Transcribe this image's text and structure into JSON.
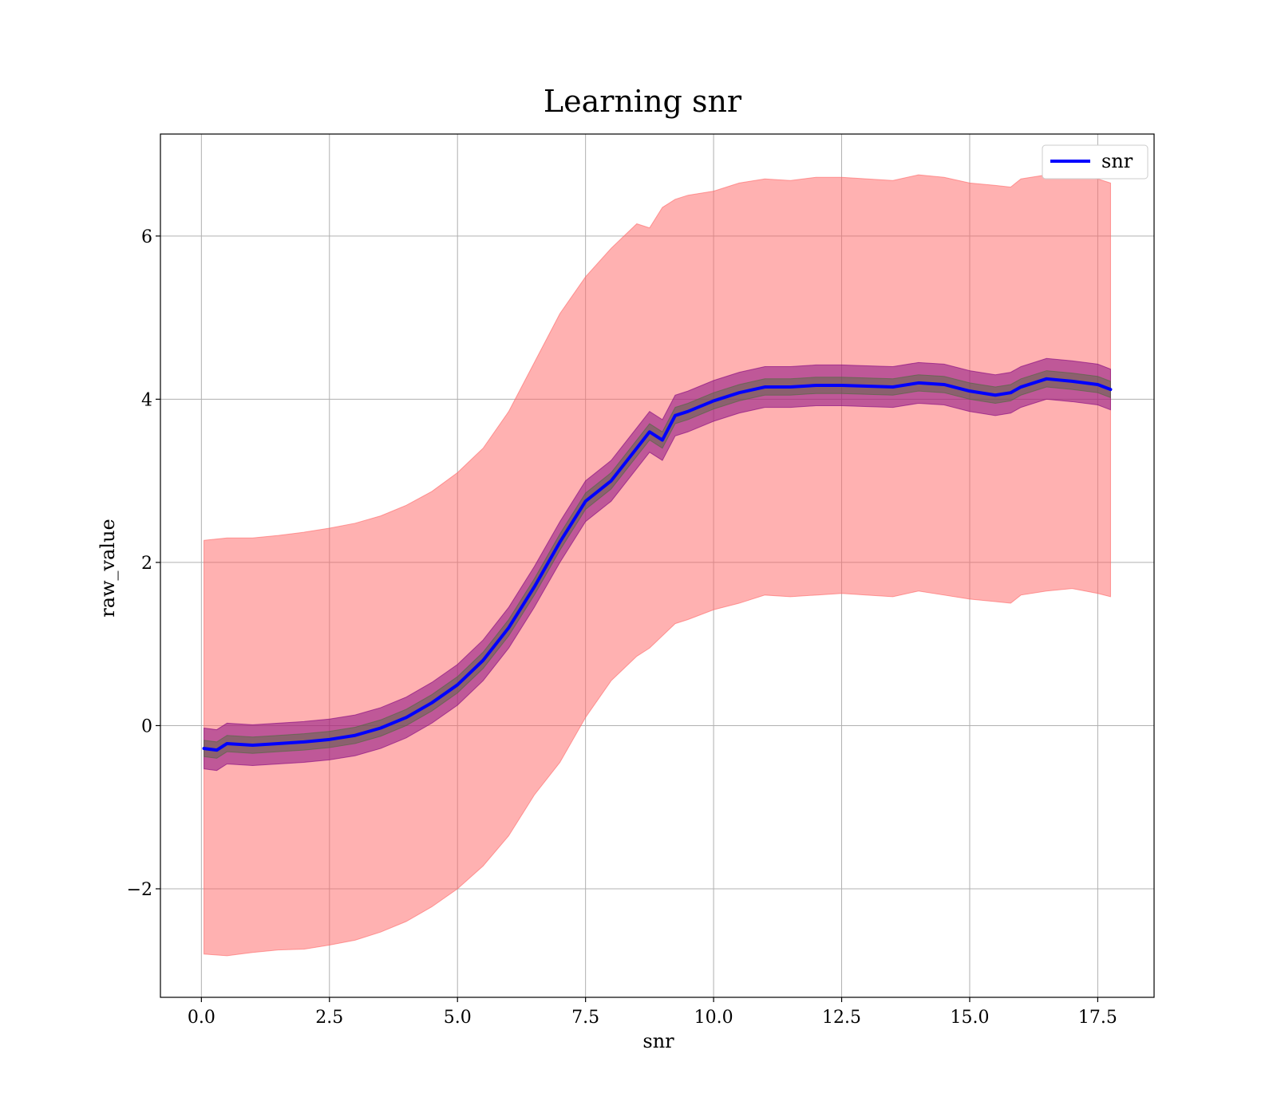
{
  "chart_data": {
    "type": "line",
    "title": "Learning snr",
    "xlabel": "snr",
    "ylabel": "raw_value",
    "xlim": [
      -0.8,
      18.6
    ],
    "ylim": [
      -3.33,
      7.25
    ],
    "xticks": [
      0.0,
      2.5,
      5.0,
      7.5,
      10.0,
      12.5,
      15.0,
      17.5
    ],
    "xtick_labels": [
      "0.0",
      "2.5",
      "5.0",
      "7.5",
      "10.0",
      "12.5",
      "15.0",
      "17.5"
    ],
    "yticks": [
      -2,
      0,
      2,
      4,
      6
    ],
    "ytick_labels": [
      "−2",
      "0",
      "2",
      "4",
      "6"
    ],
    "grid": true,
    "legend_position": "top-right",
    "series": [
      {
        "name": "snr",
        "color": "#0000ff",
        "x": [
          0.05,
          0.3,
          0.5,
          1.0,
          1.5,
          2.0,
          2.5,
          3.0,
          3.5,
          4.0,
          4.5,
          5.0,
          5.5,
          6.0,
          6.5,
          7.0,
          7.5,
          8.0,
          8.5,
          8.75,
          9.0,
          9.25,
          9.5,
          10.0,
          10.5,
          11.0,
          11.5,
          12.0,
          12.5,
          13.0,
          13.5,
          14.0,
          14.5,
          15.0,
          15.5,
          15.8,
          16.0,
          16.5,
          17.0,
          17.5,
          17.75
        ],
        "y": [
          -0.28,
          -0.3,
          -0.22,
          -0.24,
          -0.22,
          -0.2,
          -0.17,
          -0.12,
          -0.03,
          0.1,
          0.28,
          0.5,
          0.8,
          1.2,
          1.7,
          2.25,
          2.75,
          3.0,
          3.4,
          3.6,
          3.5,
          3.8,
          3.85,
          3.98,
          4.08,
          4.15,
          4.15,
          4.17,
          4.17,
          4.16,
          4.15,
          4.2,
          4.18,
          4.1,
          4.05,
          4.08,
          4.15,
          4.25,
          4.22,
          4.18,
          4.12
        ]
      }
    ],
    "bands": [
      {
        "color": "#ff6464",
        "opacity": 0.5,
        "x": [
          0.05,
          0.5,
          1.0,
          1.5,
          2.0,
          2.5,
          3.0,
          3.5,
          4.0,
          4.5,
          5.0,
          5.5,
          6.0,
          6.5,
          7.0,
          7.5,
          8.0,
          8.5,
          8.75,
          9.0,
          9.25,
          9.5,
          10.0,
          10.5,
          11.0,
          11.5,
          12.0,
          12.5,
          13.0,
          13.5,
          14.0,
          14.5,
          15.0,
          15.5,
          15.8,
          16.0,
          16.5,
          17.0,
          17.5,
          17.75
        ],
        "upper": [
          2.27,
          2.3,
          2.3,
          2.33,
          2.37,
          2.42,
          2.48,
          2.57,
          2.7,
          2.87,
          3.1,
          3.4,
          3.85,
          4.45,
          5.05,
          5.5,
          5.85,
          6.15,
          6.1,
          6.35,
          6.45,
          6.5,
          6.55,
          6.65,
          6.7,
          6.68,
          6.72,
          6.72,
          6.7,
          6.68,
          6.75,
          6.72,
          6.65,
          6.62,
          6.6,
          6.7,
          6.75,
          6.72,
          6.7,
          6.65
        ],
        "lower": [
          -2.8,
          -2.82,
          -2.78,
          -2.75,
          -2.74,
          -2.69,
          -2.63,
          -2.53,
          -2.4,
          -2.22,
          -2.0,
          -1.72,
          -1.35,
          -0.85,
          -0.45,
          0.1,
          0.55,
          0.85,
          0.95,
          1.1,
          1.25,
          1.3,
          1.42,
          1.5,
          1.6,
          1.58,
          1.6,
          1.62,
          1.6,
          1.58,
          1.65,
          1.6,
          1.55,
          1.52,
          1.5,
          1.6,
          1.65,
          1.68,
          1.62,
          1.58
        ]
      },
      {
        "color": "#800080",
        "opacity": 0.5,
        "x": [
          0.05,
          0.3,
          0.5,
          1.0,
          1.5,
          2.0,
          2.5,
          3.0,
          3.5,
          4.0,
          4.5,
          5.0,
          5.5,
          6.0,
          6.5,
          7.0,
          7.5,
          8.0,
          8.5,
          8.75,
          9.0,
          9.25,
          9.5,
          10.0,
          10.5,
          11.0,
          11.5,
          12.0,
          12.5,
          13.0,
          13.5,
          14.0,
          14.5,
          15.0,
          15.5,
          15.8,
          16.0,
          16.5,
          17.0,
          17.5,
          17.75
        ],
        "upper": [
          -0.03,
          -0.05,
          0.03,
          0.01,
          0.03,
          0.05,
          0.08,
          0.13,
          0.22,
          0.35,
          0.53,
          0.75,
          1.05,
          1.45,
          1.95,
          2.5,
          3.0,
          3.25,
          3.65,
          3.85,
          3.75,
          4.05,
          4.1,
          4.23,
          4.33,
          4.4,
          4.4,
          4.42,
          4.42,
          4.41,
          4.4,
          4.45,
          4.43,
          4.35,
          4.3,
          4.33,
          4.4,
          4.5,
          4.47,
          4.43,
          4.37
        ],
        "lower": [
          -0.53,
          -0.55,
          -0.47,
          -0.49,
          -0.47,
          -0.45,
          -0.42,
          -0.37,
          -0.28,
          -0.15,
          0.03,
          0.25,
          0.55,
          0.95,
          1.45,
          2.0,
          2.5,
          2.75,
          3.15,
          3.35,
          3.25,
          3.55,
          3.6,
          3.73,
          3.83,
          3.9,
          3.9,
          3.92,
          3.92,
          3.91,
          3.9,
          3.95,
          3.93,
          3.85,
          3.8,
          3.83,
          3.9,
          4.0,
          3.97,
          3.93,
          3.87
        ]
      },
      {
        "color": "#4b6b3c",
        "opacity": 0.45,
        "x": [
          0.05,
          0.3,
          0.5,
          1.0,
          1.5,
          2.0,
          2.5,
          3.0,
          3.5,
          4.0,
          4.5,
          5.0,
          5.5,
          6.0,
          6.5,
          7.0,
          7.5,
          8.0,
          8.5,
          8.75,
          9.0,
          9.25,
          9.5,
          10.0,
          10.5,
          11.0,
          11.5,
          12.0,
          12.5,
          13.0,
          13.5,
          14.0,
          14.5,
          15.0,
          15.5,
          15.8,
          16.0,
          16.5,
          17.0,
          17.5,
          17.75
        ],
        "upper": [
          -0.18,
          -0.2,
          -0.12,
          -0.14,
          -0.12,
          -0.1,
          -0.07,
          -0.02,
          0.07,
          0.2,
          0.38,
          0.6,
          0.9,
          1.3,
          1.8,
          2.35,
          2.85,
          3.1,
          3.5,
          3.7,
          3.6,
          3.9,
          3.95,
          4.08,
          4.18,
          4.25,
          4.25,
          4.27,
          4.27,
          4.26,
          4.25,
          4.3,
          4.28,
          4.2,
          4.15,
          4.18,
          4.25,
          4.35,
          4.32,
          4.28,
          4.22
        ],
        "lower": [
          -0.38,
          -0.4,
          -0.32,
          -0.34,
          -0.32,
          -0.3,
          -0.27,
          -0.22,
          -0.13,
          0.0,
          0.18,
          0.4,
          0.7,
          1.1,
          1.6,
          2.15,
          2.65,
          2.9,
          3.3,
          3.5,
          3.4,
          3.7,
          3.75,
          3.88,
          3.98,
          4.05,
          4.05,
          4.07,
          4.07,
          4.06,
          4.05,
          4.1,
          4.08,
          4.0,
          3.95,
          3.98,
          4.05,
          4.15,
          4.12,
          4.08,
          4.02
        ]
      }
    ]
  },
  "legend": {
    "label": "snr"
  }
}
